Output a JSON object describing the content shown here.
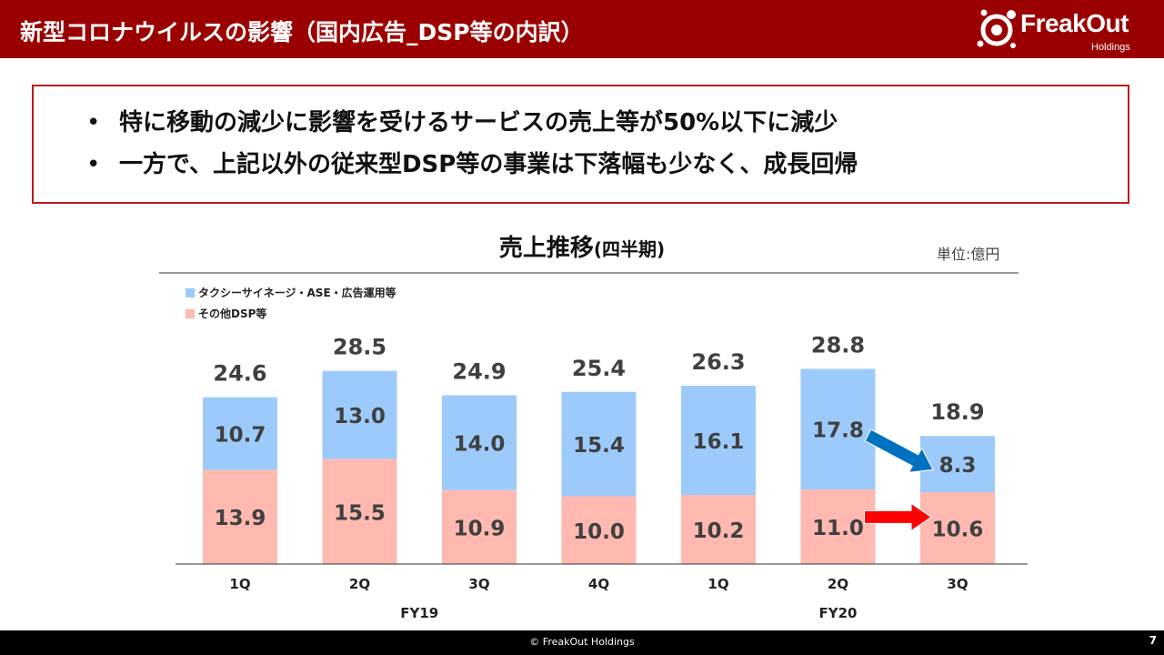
{
  "header": {
    "title": "新型コロナウイルスの影響（国内広告_DSP等の内訳）",
    "logo_name": "FreakOut",
    "logo_sub": "Holdings"
  },
  "summary": {
    "bullet": "•",
    "items": [
      "特に移動の減少に影響を受けるサービスの売上等が50%以下に減少",
      "一方で、上記以外の従来型DSP等の事業は下落幅も少なく、成長回帰"
    ]
  },
  "chart_title": "売上推移",
  "chart_title_suffix": "(四半期)",
  "unit": "単位:億円",
  "chart_data": {
    "type": "bar",
    "stacked": true,
    "categories": [
      "1Q",
      "2Q",
      "3Q",
      "4Q",
      "1Q",
      "2Q",
      "3Q"
    ],
    "groups": [
      {
        "label": "FY19",
        "categories": [
          "1Q",
          "2Q",
          "3Q",
          "4Q"
        ]
      },
      {
        "label": "FY20",
        "categories": [
          "1Q",
          "2Q",
          "3Q"
        ]
      }
    ],
    "series": [
      {
        "name": "その他DSP等",
        "color": "#ffb9b0",
        "values": [
          13.9,
          15.5,
          10.9,
          10.0,
          10.2,
          11.0,
          10.6
        ]
      },
      {
        "name": "タクシーサイネージ・ASE・広告運用等",
        "color": "#9ccbfb",
        "values": [
          10.7,
          13.0,
          14.0,
          15.4,
          16.1,
          17.8,
          8.3
        ]
      }
    ],
    "totals": [
      "24.6",
      "28.5",
      "24.9",
      "25.4",
      "26.3",
      "28.8",
      "18.9"
    ],
    "legend_position": "top-left",
    "ylim": [
      0,
      30
    ],
    "grid": false,
    "annotations": [
      {
        "type": "arrow",
        "color": "#0070c0",
        "from_category": 5,
        "to_category": 6,
        "series": "タクシーサイネージ・ASE・広告運用等"
      },
      {
        "type": "arrow",
        "color": "#ff0000",
        "from_category": 5,
        "to_category": 6,
        "series": "その他DSP等"
      }
    ]
  },
  "footer": {
    "copyright": "© FreakOut Holdings",
    "page": "7"
  }
}
